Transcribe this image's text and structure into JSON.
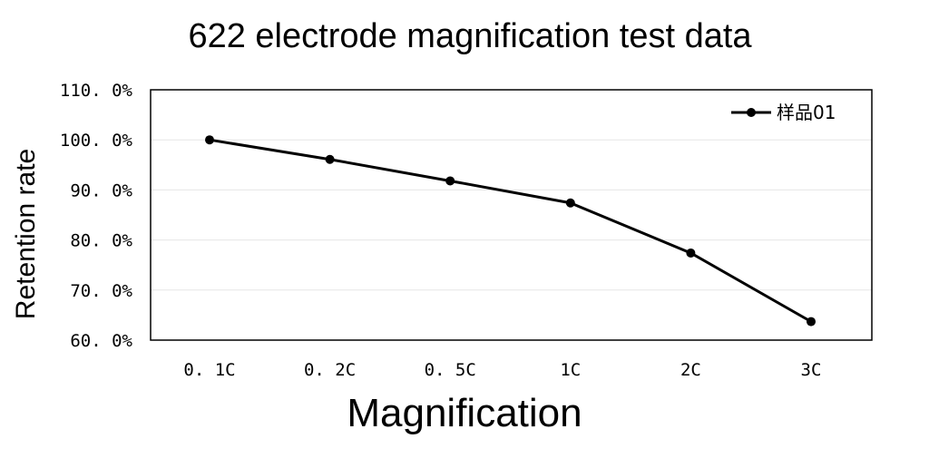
{
  "chart_data": {
    "type": "line",
    "title": "622 electrode magnification test data",
    "xlabel": "Magnification",
    "ylabel": "Retention rate",
    "categories": [
      "0. 1C",
      "0. 2C",
      "0. 5C",
      "1C",
      "2C",
      "3C"
    ],
    "series": [
      {
        "name": "样品01",
        "values": [
          100.0,
          96.1,
          91.8,
          87.4,
          77.4,
          63.7
        ],
        "color": "#000000"
      }
    ],
    "ylim": [
      60,
      110
    ],
    "yticks": [
      60,
      70,
      80,
      90,
      100,
      110
    ],
    "ytick_labels": [
      "60. 0%",
      "70. 0%",
      "80. 0%",
      "90. 0%",
      "100. 0%",
      "110. 0%"
    ],
    "grid": true,
    "legend_position": "top-right"
  }
}
